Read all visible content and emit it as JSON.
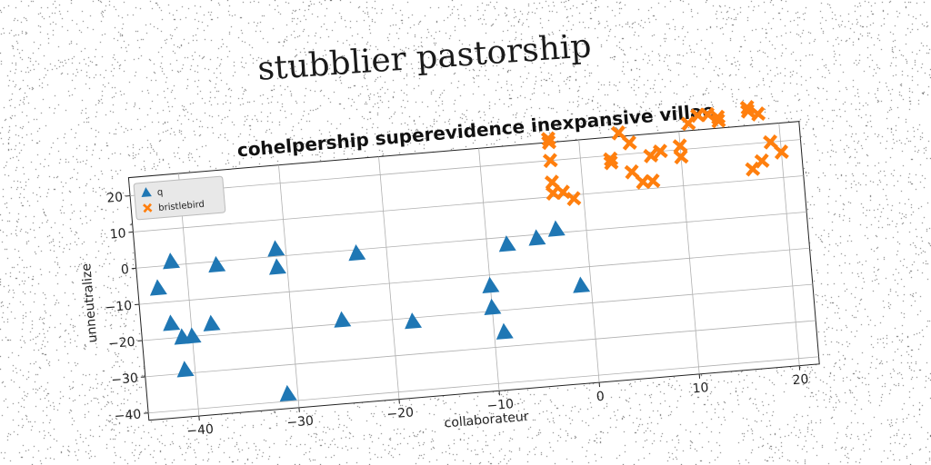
{
  "title": "stubblier pastorship",
  "chart_data": {
    "type": "scatter",
    "subtitle": "cohelpership superevidence inexpansive villae",
    "xlabel": "collaborateur",
    "ylabel": "unneutralize",
    "xlim": [
      -45,
      22
    ],
    "ylim": [
      -42,
      25
    ],
    "xticks": [
      -40,
      -30,
      -20,
      -10,
      0,
      10,
      20
    ],
    "yticks": [
      -40,
      -30,
      -20,
      -10,
      0,
      10,
      20
    ],
    "grid": true,
    "legend_position": "top-left",
    "series": [
      {
        "name": "q",
        "marker": "triangle",
        "color": "#1f77b4",
        "points": [
          [
            -43,
            -6
          ],
          [
            -41.5,
            1
          ],
          [
            -37,
            -1
          ],
          [
            -31,
            2
          ],
          [
            -31,
            -3
          ],
          [
            -23,
            -1
          ],
          [
            -42,
            -16
          ],
          [
            -41,
            -20
          ],
          [
            -40,
            -20
          ],
          [
            -38,
            -17
          ],
          [
            -41,
            -29
          ],
          [
            -31,
            -38
          ],
          [
            -25,
            -19
          ],
          [
            -18,
            -21
          ],
          [
            -10,
            -13
          ],
          [
            -10,
            -19
          ],
          [
            -9,
            -26
          ],
          [
            -8,
            -2
          ],
          [
            -5,
            -1
          ],
          [
            -3,
            1
          ],
          [
            -1,
            -15
          ]
        ]
      },
      {
        "name": "bristlebird",
        "marker": "x",
        "color": "#ff7f0e",
        "points": [
          [
            -3,
            26
          ],
          [
            -3,
            25
          ],
          [
            -3,
            20
          ],
          [
            -3,
            14
          ],
          [
            -3,
            11
          ],
          [
            -2,
            11
          ],
          [
            -1,
            9
          ],
          [
            3,
            19
          ],
          [
            3,
            18
          ],
          [
            4,
            26
          ],
          [
            5,
            23
          ],
          [
            5,
            15
          ],
          [
            6,
            12
          ],
          [
            7,
            12
          ],
          [
            7,
            19
          ],
          [
            8,
            20
          ],
          [
            10,
            21
          ],
          [
            10,
            18
          ],
          [
            11,
            27
          ],
          [
            12,
            29
          ],
          [
            13,
            29
          ],
          [
            14,
            28
          ],
          [
            14,
            27
          ],
          [
            17,
            30
          ],
          [
            17,
            29
          ],
          [
            18,
            28
          ],
          [
            17,
            13
          ],
          [
            18,
            15
          ],
          [
            19,
            20
          ],
          [
            20,
            17
          ]
        ]
      }
    ]
  }
}
